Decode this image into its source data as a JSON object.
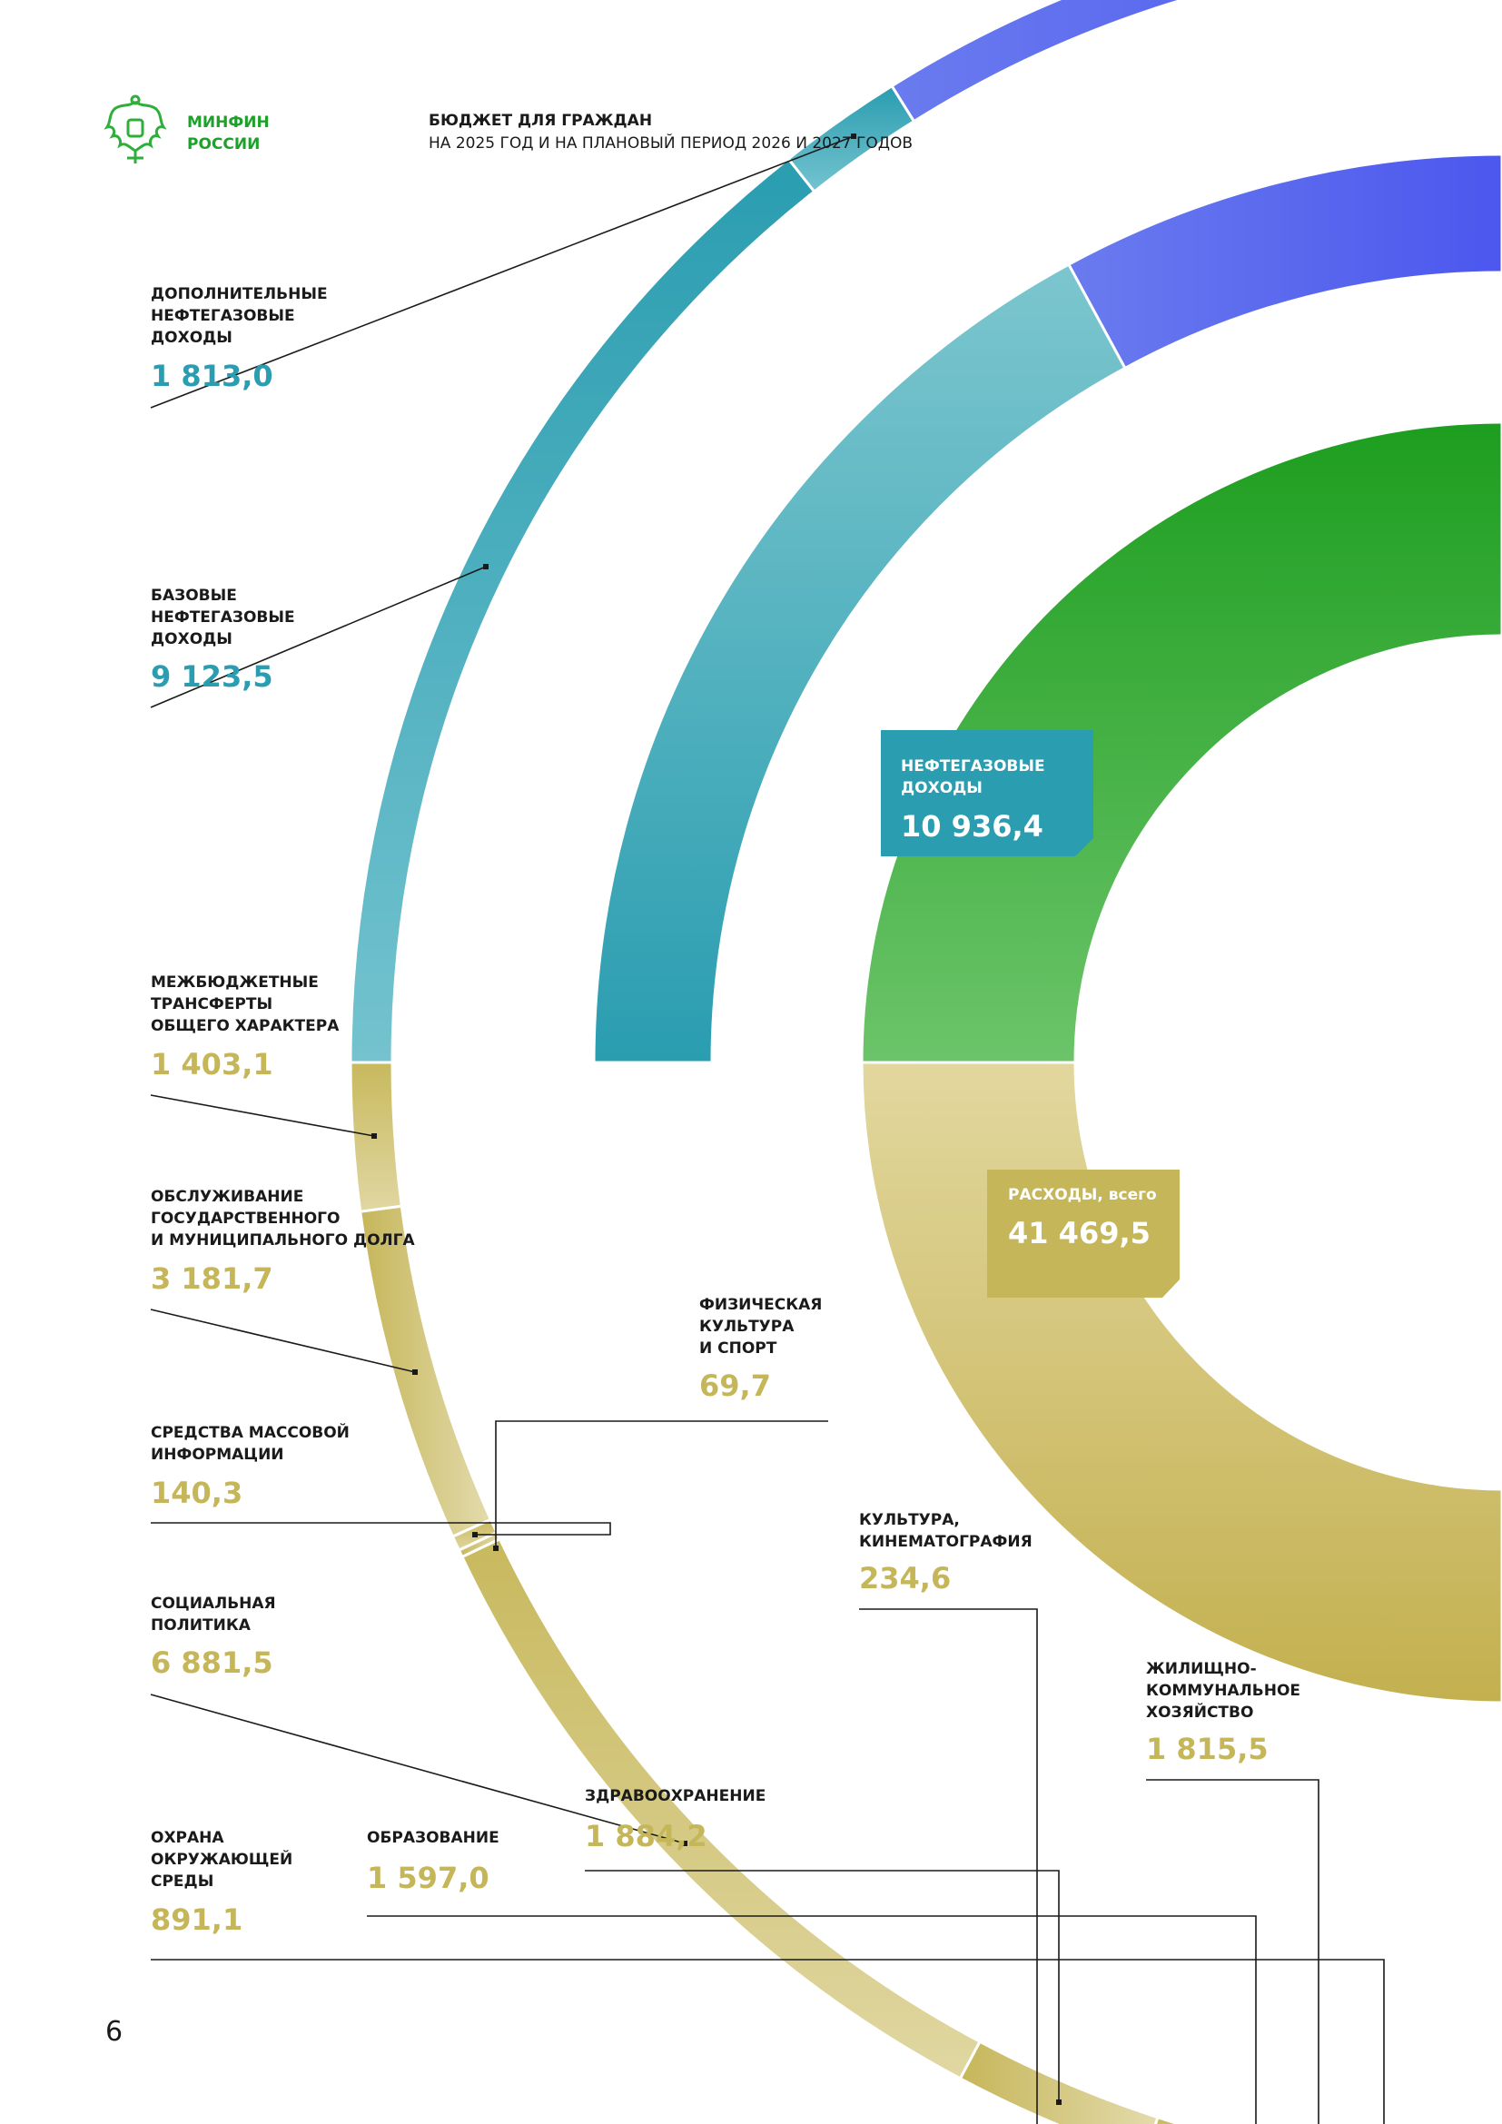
{
  "header": {
    "org_line1": "МИНФИН",
    "org_line2": "РОССИИ",
    "title": "БЮДЖЕТ ДЛЯ ГРАЖДАН",
    "subtitle": "НА 2025 ГОД И НА ПЛАНОВЫЙ ПЕРИОД 2026 И 2027 ГОДОВ"
  },
  "page_number": "6",
  "colors": {
    "teal": "#2a9db0",
    "gold": "#c6b65a",
    "blue": "#4b57ee",
    "green": "#22a423"
  },
  "chart_data": {
    "type": "donut",
    "unit": "млрд рублей",
    "rings": [
      {
        "name": "revenue_components",
        "segments": [
          {
            "label": "ДОПОЛНИТЕЛЬНЫЕ НЕФТЕГАЗОВЫЕ ДОХОДЫ",
            "value": 1813.0,
            "display": "1 813,0"
          },
          {
            "label": "БАЗОВЫЕ НЕФТЕГАЗОВЫЕ ДОХОДЫ",
            "value": 9123.5,
            "display": "9 123,5"
          }
        ]
      },
      {
        "name": "revenue_groups",
        "segments": [
          {
            "label": "НЕФТЕГАЗОВЫЕ ДОХОДЫ",
            "value": 10936.4,
            "display": "10 936,4"
          }
        ]
      },
      {
        "name": "expenditures",
        "segments": [
          {
            "label": "РАСХОДЫ, всего",
            "value": 41469.5,
            "display": "41 469,5"
          }
        ]
      },
      {
        "name": "expenditure_breakdown",
        "segments": [
          {
            "label": "МЕЖБЮДЖЕТНЫЕ ТРАНСФЕРТЫ ОБЩЕГО ХАРАКТЕРА",
            "value": 1403.1,
            "display": "1 403,1"
          },
          {
            "label": "ОБСЛУЖИВАНИЕ ГОСУДАРСТВЕННОГО И МУНИЦИПАЛЬНОГО ДОЛГА",
            "value": 3181.7,
            "display": "3 181,7"
          },
          {
            "label": "СРЕДСТВА МАССОВОЙ ИНФОРМАЦИИ",
            "value": 140.3,
            "display": "140,3"
          },
          {
            "label": "ФИЗИЧЕСКАЯ КУЛЬТУРА И СПОРТ",
            "value": 69.7,
            "display": "69,7"
          },
          {
            "label": "СОЦИАЛЬНАЯ ПОЛИТИКА",
            "value": 6881.5,
            "display": "6 881,5"
          },
          {
            "label": "ЗДРАВООХРАНЕНИЕ",
            "value": 1884.2,
            "display": "1 884,2"
          },
          {
            "label": "КУЛЬТУРА, КИНЕМАТОГРАФИЯ",
            "value": 234.6,
            "display": "234,6"
          },
          {
            "label": "ОБРАЗОВАНИЕ",
            "value": 1597.0,
            "display": "1 597,0"
          },
          {
            "label": "ОХРАНА ОКРУЖАЮЩЕЙ СРЕДЫ",
            "value": 891.1,
            "display": "891,1"
          },
          {
            "label": "ЖИЛИЩНО-КОММУНАЛЬНОЕ ХОЗЯЙСТВО",
            "value": 1815.5,
            "display": "1 815,5"
          }
        ]
      }
    ]
  },
  "labels": {
    "dop_neftegaz": {
      "text": "ДОПОЛНИТЕЛЬНЫЕ\nНЕФТЕГАЗОВЫЕ\nДОХОДЫ",
      "value": "1 813,0"
    },
    "baz_neftegaz": {
      "text": "БАЗОВЫЕ\nНЕФТЕГАЗОВЫЕ\nДОХОДЫ",
      "value": "9 123,5"
    },
    "mezhbyudzh": {
      "text": "МЕЖБЮДЖЕТНЫЕ\nТРАНСФЕРТЫ\nОБЩЕГО ХАРАКТЕРА",
      "value": "1 403,1"
    },
    "dolg": {
      "text": "ОБСЛУЖИВАНИЕ\nГОСУДАРСТВЕННОГО\nИ МУНИЦИПАЛЬНОГО ДОЛГА",
      "value": "3 181,7"
    },
    "sport": {
      "text": "ФИЗИЧЕСКАЯ\nКУЛЬТУРА\nИ СПОРТ",
      "value": "69,7"
    },
    "smi": {
      "text": "СРЕДСТВА МАССОВОЙ\nИНФОРМАЦИИ",
      "value": "140,3"
    },
    "kultura": {
      "text": "КУЛЬТУРА,\nКИНЕМАТОГРАФИЯ",
      "value": "234,6"
    },
    "soc": {
      "text": "СОЦИАЛЬНАЯ\nПОЛИТИКА",
      "value": "6 881,5"
    },
    "zhkh": {
      "text": "ЖИЛИЩНО-\nКОММУНАЛЬНОЕ\nХОЗЯЙСТВО",
      "value": "1 815,5"
    },
    "zdrav": {
      "text": "ЗДРАВООХРАНЕНИЕ",
      "value": "1 884,2"
    },
    "obraz": {
      "text": "ОБРАЗОВАНИЕ",
      "value": "1 597,0"
    },
    "okhrana": {
      "text": "ОХРАНА\nОКРУЖАЮЩЕЙ\nСРЕДЫ",
      "value": "891,1"
    }
  },
  "boxes": {
    "neftegaz": {
      "text": "НЕФТЕГАЗОВЫЕ\nДОХОДЫ",
      "value": "10 936,4"
    },
    "raskhody": {
      "text": "РАСХОДЫ, всего",
      "value": "41 469,5"
    }
  }
}
